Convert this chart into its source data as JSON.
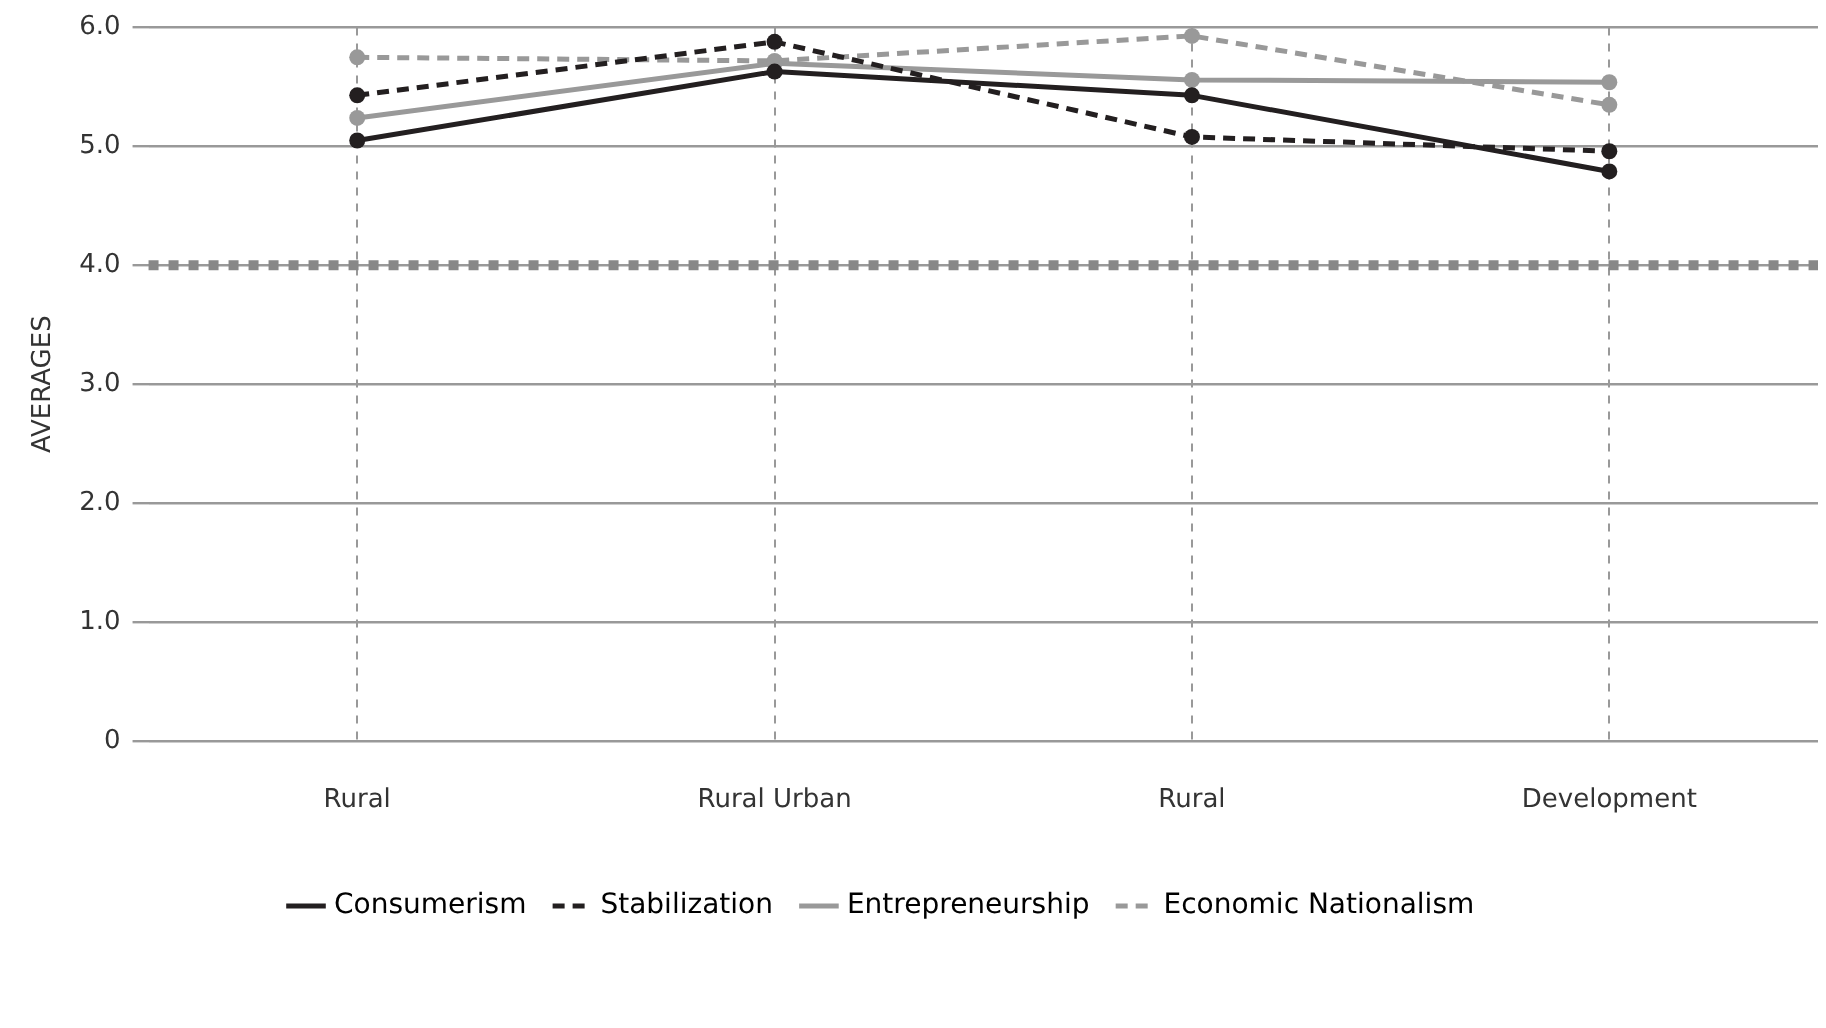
{
  "chart_data": {
    "type": "line",
    "ylabel": "AVERAGES",
    "categories": [
      "Rural",
      "Rural Urban",
      "Rural",
      "Development"
    ],
    "series": [
      {
        "name": "Consumerism",
        "color": "#231f20",
        "line_style": "solid",
        "values": [
          5.05,
          5.63,
          5.43,
          4.79
        ]
      },
      {
        "name": "Stabilization",
        "color": "#231f20",
        "line_style": "dashed",
        "values": [
          5.43,
          5.88,
          5.08,
          4.96
        ]
      },
      {
        "name": "Entrepreneurship",
        "color": "#999999",
        "line_style": "solid",
        "values": [
          5.24,
          5.7,
          5.56,
          5.54
        ]
      },
      {
        "name": "Economic Nationalism",
        "color": "#999999",
        "line_style": "dashed",
        "values": [
          5.75,
          5.72,
          5.93,
          5.35
        ]
      }
    ],
    "ylim": [
      0,
      6
    ],
    "yticks": [
      0,
      {
        "value": 1,
        "label": "1.0"
      },
      {
        "value": 2,
        "label": "2.0"
      },
      {
        "value": 3,
        "label": "3.0"
      },
      {
        "value": 4,
        "label": "4.0"
      },
      {
        "value": 5,
        "label": "5.0"
      },
      {
        "value": 6,
        "label": "6.0"
      }
    ],
    "ref_lines": [
      {
        "axis": "y",
        "value": 4,
        "color": "#888888",
        "line_style": "dotted"
      }
    ],
    "grid": true,
    "legend": "bottom",
    "marker": "circle"
  }
}
